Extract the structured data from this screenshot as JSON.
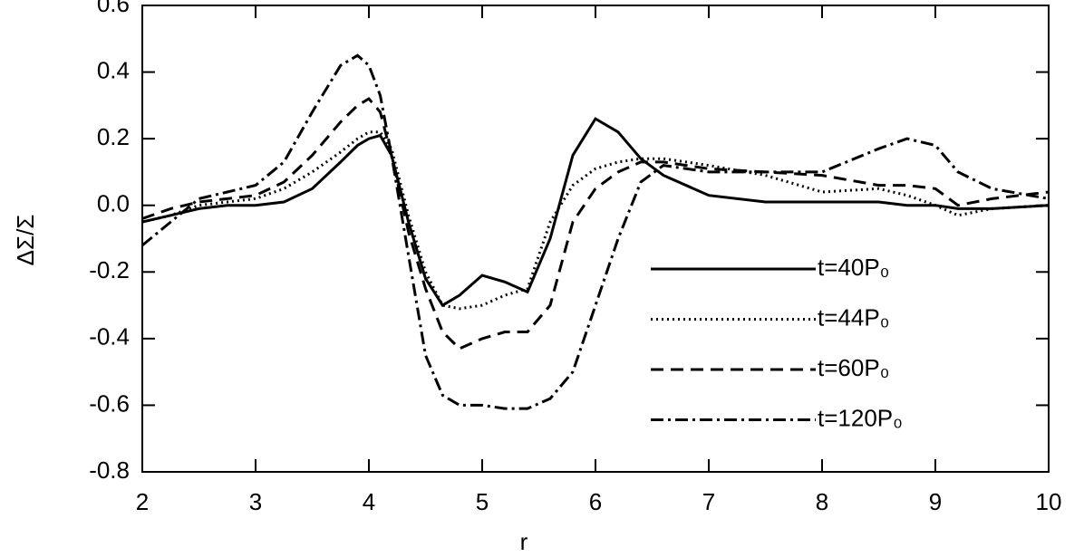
{
  "chart_data": {
    "type": "line",
    "x_label": "r",
    "y_label": "ΔΣ/Σ",
    "x": [
      2,
      2.25,
      2.5,
      2.75,
      3,
      3.25,
      3.5,
      3.75,
      3.9,
      4,
      4.1,
      4.2,
      4.35,
      4.5,
      4.65,
      4.8,
      5,
      5.2,
      5.4,
      5.6,
      5.8,
      6,
      6.2,
      6.4,
      6.6,
      7,
      7.5,
      8,
      8.5,
      8.75,
      9,
      9.2,
      9.5,
      10
    ],
    "series": [
      {
        "name": "t=40P₀",
        "color": "#000000",
        "linestyle": "solid",
        "values": [
          -0.05,
          -0.03,
          -0.01,
          0,
          0,
          0.01,
          0.05,
          0.13,
          0.18,
          0.2,
          0.21,
          0.15,
          -0.05,
          -0.22,
          -0.3,
          -0.27,
          -0.21,
          -0.23,
          -0.26,
          -0.1,
          0.15,
          0.26,
          0.22,
          0.14,
          0.09,
          0.03,
          0.01,
          0.01,
          0.01,
          0,
          0,
          -0.01,
          -0.01,
          0
        ]
      },
      {
        "name": "t=44P₀",
        "color": "#000000",
        "linestyle": "dotted",
        "values": [
          -0.05,
          -0.03,
          0,
          0.01,
          0.02,
          0.05,
          0.1,
          0.16,
          0.2,
          0.22,
          0.22,
          0.17,
          -0.03,
          -0.2,
          -0.3,
          -0.31,
          -0.3,
          -0.27,
          -0.25,
          -0.05,
          0.06,
          0.11,
          0.13,
          0.14,
          0.14,
          0.12,
          0.09,
          0.04,
          0.05,
          0.03,
          0,
          -0.03,
          -0.01,
          0
        ]
      },
      {
        "name": "t=60P₀",
        "color": "#000000",
        "linestyle": "dashed",
        "values": [
          -0.04,
          -0.01,
          0.01,
          0.02,
          0.03,
          0.07,
          0.15,
          0.25,
          0.3,
          0.32,
          0.28,
          0.15,
          -0.08,
          -0.25,
          -0.38,
          -0.43,
          -0.4,
          -0.38,
          -0.38,
          -0.3,
          -0.05,
          0.05,
          0.1,
          0.13,
          0.13,
          0.11,
          0.1,
          0.09,
          0.06,
          0.06,
          0.05,
          0,
          0.02,
          0.04
        ]
      },
      {
        "name": "t=120P₀",
        "color": "#000000",
        "linestyle": "dashdot",
        "values": [
          -0.12,
          -0.05,
          0.02,
          0.04,
          0.06,
          0.13,
          0.28,
          0.42,
          0.45,
          0.42,
          0.33,
          0.15,
          -0.15,
          -0.45,
          -0.57,
          -0.6,
          -0.6,
          -0.61,
          -0.61,
          -0.58,
          -0.5,
          -0.3,
          -0.1,
          0.07,
          0.12,
          0.1,
          0.1,
          0.1,
          0.17,
          0.2,
          0.18,
          0.1,
          0.05,
          0.02
        ]
      }
    ],
    "xlim": [
      2,
      10
    ],
    "xticks": [
      2,
      3,
      4,
      5,
      6,
      7,
      8,
      9,
      10
    ],
    "ylim": [
      -0.8,
      0.6
    ],
    "yticks": [
      -0.8,
      -0.6,
      -0.4,
      -0.2,
      {
        "value": 0,
        "label": "0.0"
      },
      0.2,
      0.4,
      0.6
    ]
  }
}
